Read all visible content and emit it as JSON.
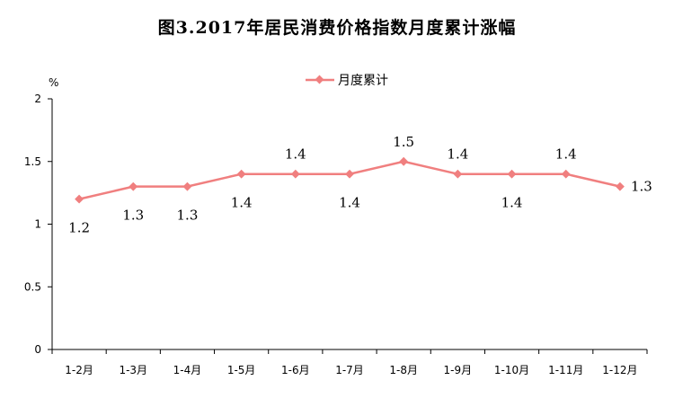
{
  "page_title": "图3.2017年居民消费价格指数月度累计涨幅",
  "chart_data": {
    "type": "line",
    "title": "图3.2017年居民消费价格指数月度累计涨幅",
    "ylabel": "%",
    "xlabel": "",
    "ylim": [
      0,
      2
    ],
    "yticks": [
      "0",
      "0.5",
      "1",
      "1.5",
      "2"
    ],
    "categories": [
      "1-2月",
      "1-3月",
      "1-4月",
      "1-5月",
      "1-6月",
      "1-7月",
      "1-8月",
      "1-9月",
      "1-10月",
      "1-11月",
      "1-12月"
    ],
    "series": [
      {
        "name": "月度累计",
        "color": "#f07f7f",
        "values": [
          1.2,
          1.3,
          1.3,
          1.4,
          1.4,
          1.4,
          1.5,
          1.4,
          1.4,
          1.4,
          1.3
        ],
        "labels": [
          "1.2",
          "1.3",
          "1.3",
          "1.4",
          "1.4",
          "1.4",
          "1.5",
          "1.4",
          "1.4",
          "1.4",
          "1.3"
        ]
      }
    ],
    "legend_position": "top-center",
    "grid": false
  }
}
